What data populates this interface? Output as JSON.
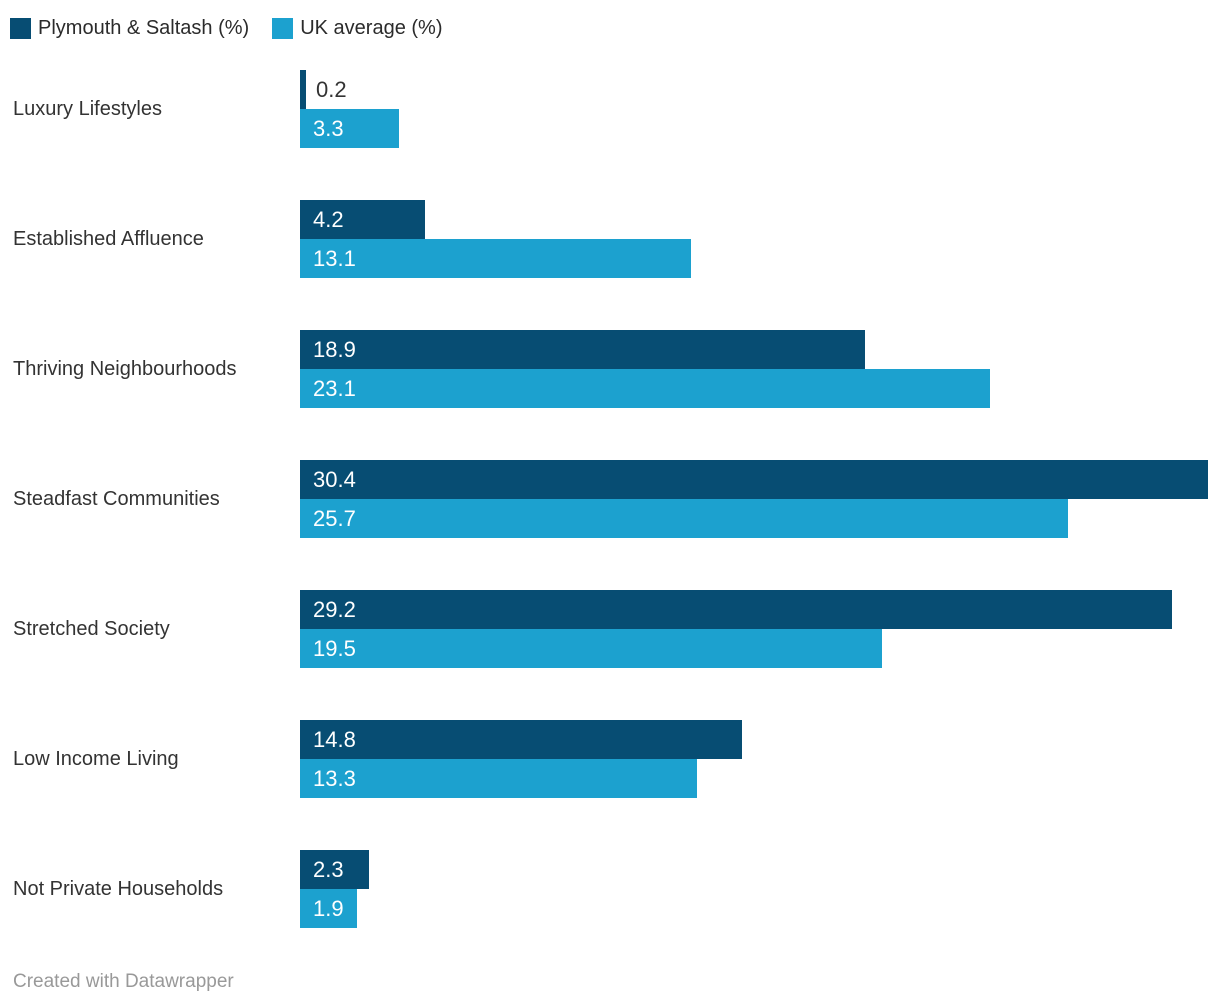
{
  "legend": {
    "items": [
      {
        "label": "Plymouth & Saltash (%)",
        "color": "#074d73"
      },
      {
        "label": "UK average (%)",
        "color": "#1ca1cf"
      }
    ]
  },
  "chart_data": {
    "type": "bar",
    "orientation": "horizontal",
    "title": "",
    "xlabel": "",
    "ylabel": "",
    "xlim": [
      0,
      30.4
    ],
    "grid": false,
    "legend_position": "top",
    "value_labels": "inside-bar, one decimal; shown outside bar when bar too short",
    "categories": [
      "Luxury Lifestyles",
      "Established Affluence",
      "Thriving Neighbourhoods",
      "Steadfast Communities",
      "Stretched Society",
      "Low Income Living",
      "Not Private Households"
    ],
    "series": [
      {
        "name": "Plymouth & Saltash (%)",
        "color": "#074d73",
        "values": [
          0.2,
          4.2,
          18.9,
          30.4,
          29.2,
          14.8,
          2.3
        ]
      },
      {
        "name": "UK average (%)",
        "color": "#1ca1cf",
        "values": [
          3.3,
          13.1,
          23.1,
          25.7,
          19.5,
          13.3,
          1.9
        ]
      }
    ]
  },
  "colors": {
    "series_dark": "#074d73",
    "series_light": "#1ca1cf",
    "category_text": "#333333",
    "value_text_inside": "#ffffff",
    "value_text_outside": "#333333",
    "footer_text": "#999999",
    "background": "#ffffff"
  },
  "footer": {
    "credit": "Created with Datawrapper"
  }
}
